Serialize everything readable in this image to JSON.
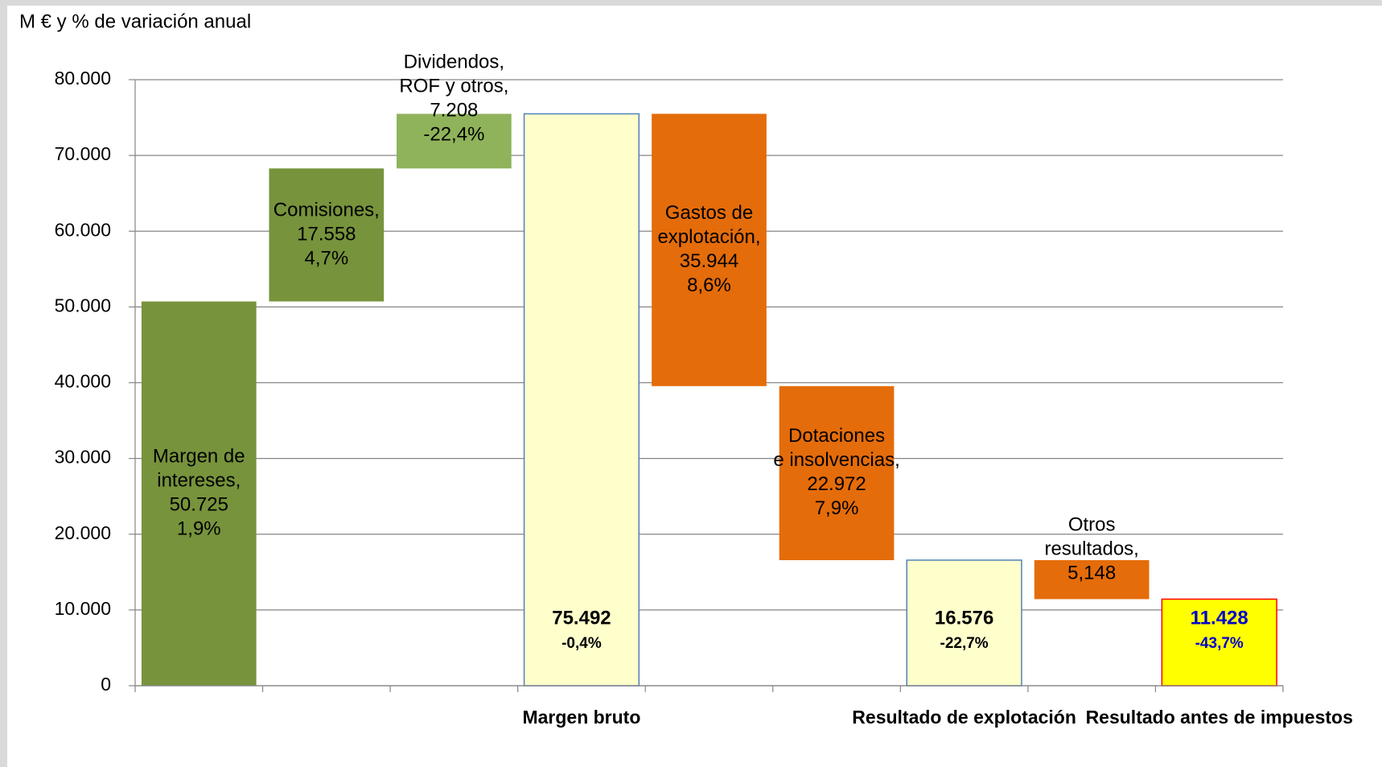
{
  "chart_data": {
    "type": "waterfall",
    "title": "M  € y % de variación anual",
    "categories": [
      null,
      null,
      null,
      "Margen bruto",
      null,
      null,
      "Resultado de explotación",
      null,
      "Resultado antes de impuestos"
    ],
    "measures": [
      "increase",
      "increase",
      "increase",
      "total",
      "decrease",
      "decrease",
      "total",
      "decrease",
      "total"
    ],
    "values": [
      50725,
      17558,
      7208,
      75492,
      35944,
      22972,
      16576,
      5148,
      11428
    ],
    "value_labels": [
      "50.725",
      "17.558",
      "7.208",
      "75.492",
      "35.944",
      "22.972",
      "16.576",
      "5,148",
      "11.428"
    ],
    "bar_labels": [
      [
        "Margen de",
        "intereses,"
      ],
      [
        "Comisiones,"
      ],
      [
        "Dividendos,",
        "ROF y otros,"
      ],
      [],
      [
        "Gastos de",
        "explotación,"
      ],
      [
        "Dotaciones",
        "e insolvencias,"
      ],
      [],
      [
        "Otros",
        "resultados,"
      ],
      []
    ],
    "change_labels": [
      "1,9%",
      "4,7%",
      "-22,4%",
      "-0,4%",
      "8,6%",
      "7,9%",
      "-22,7%",
      null,
      "-43,7%"
    ],
    "colors": [
      "#77933c",
      "#77933c",
      "#8fb35a",
      "#ffffcc",
      "#e46c0a",
      "#e46c0a",
      "#ffffcc",
      "#e46c0a",
      "#ffff00"
    ],
    "border_colors": [
      null,
      null,
      null,
      "#4f81bd",
      null,
      null,
      "#4f81bd",
      null,
      "#ff0000"
    ],
    "label_colors": [
      "#000000",
      "#000000",
      "#000000",
      "#000000",
      "#000000",
      "#000000",
      "#000000",
      "#000000",
      "#0000cc"
    ],
    "ylim": [
      0,
      80000
    ],
    "yticks": [
      0,
      {
        "value": 10000,
        "label": "10.000"
      },
      {
        "value": 20000,
        "label": "20.000"
      },
      {
        "value": 30000,
        "label": "30.000"
      },
      {
        "value": 40000,
        "label": "40.000"
      },
      {
        "value": 50000,
        "label": "50.000"
      },
      {
        "value": 60000,
        "label": "60.000"
      },
      {
        "value": 70000,
        "label": "70.000"
      },
      {
        "value": 80000,
        "label": "80.000"
      }
    ],
    "grid": true
  }
}
